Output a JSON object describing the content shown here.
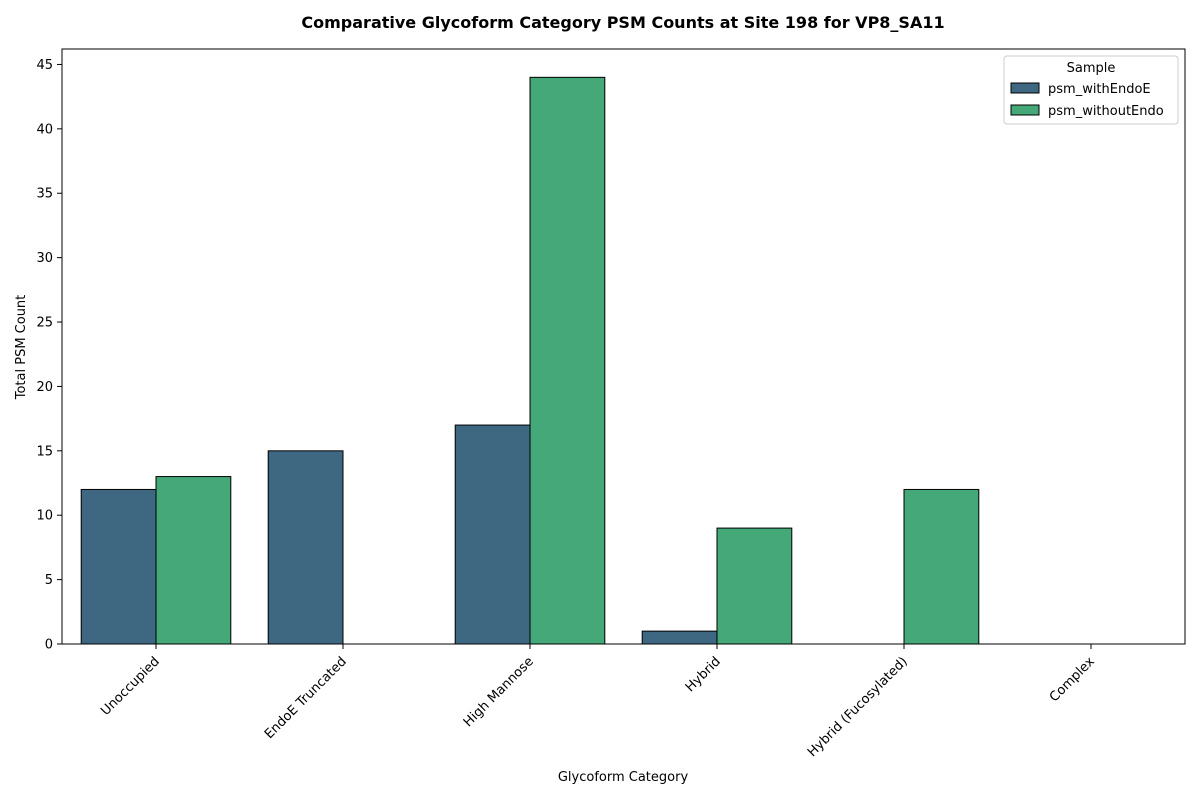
{
  "chart_data": {
    "type": "bar",
    "title": "Comparative Glycoform Category PSM Counts at Site 198 for VP8_SA11",
    "xlabel": "Glycoform Category",
    "ylabel": "Total PSM Count",
    "categories": [
      "Unoccupied",
      "EndoE Truncated",
      "High Mannose",
      "Hybrid",
      "Hybrid (Fucosylated)",
      "Complex"
    ],
    "series": [
      {
        "name": "psm_withEndoE",
        "values": [
          12,
          15,
          17,
          1,
          0,
          0
        ],
        "color": "#3e6782"
      },
      {
        "name": "psm_withoutEndo",
        "values": [
          13,
          0,
          44,
          9,
          12,
          0
        ],
        "color": "#45a878"
      }
    ],
    "ylim": [
      0,
      46.2
    ],
    "yticks": [
      0,
      5,
      10,
      15,
      20,
      25,
      30,
      35,
      40,
      45
    ],
    "legend": {
      "title": "Sample",
      "placement": "top-right"
    },
    "grid": false,
    "xtick_rotation": "45deg"
  }
}
